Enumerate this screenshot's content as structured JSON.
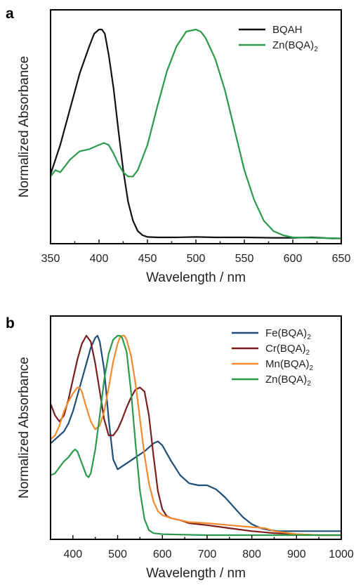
{
  "chart_data": [
    {
      "panel": "a",
      "type": "line",
      "xlabel": "Wavelength / nm",
      "ylabel": "Normalized Absorbance",
      "xlim": [
        350,
        650
      ],
      "ylim": [
        0,
        1
      ],
      "xticks": [
        350,
        400,
        450,
        500,
        550,
        600,
        650
      ],
      "legend_position": "top-right",
      "series": [
        {
          "name": "BQAH",
          "name_main": "BQAH",
          "name_sub": "",
          "color": "#111111",
          "x": [
            350,
            360,
            370,
            380,
            390,
            395,
            400,
            403,
            406,
            410,
            415,
            420,
            425,
            430,
            435,
            440,
            445,
            450,
            460,
            480,
            500,
            520,
            550,
            580,
            600,
            620,
            630,
            640,
            650
          ],
          "y": [
            0.31,
            0.45,
            0.62,
            0.79,
            0.92,
            0.98,
            1.0,
            1.0,
            0.98,
            0.88,
            0.72,
            0.52,
            0.33,
            0.18,
            0.09,
            0.04,
            0.02,
            0.012,
            0.01,
            0.01,
            0.012,
            0.01,
            0.01,
            0.008,
            0.008,
            0.01,
            0.008,
            0.005,
            0.005
          ]
        },
        {
          "name": "Zn(BQA)2",
          "name_main": "Zn(BQA)",
          "name_sub": "2",
          "color": "#2a9a4a",
          "x": [
            350,
            355,
            360,
            365,
            370,
            380,
            390,
            400,
            405,
            410,
            415,
            420,
            425,
            430,
            435,
            440,
            450,
            460,
            470,
            480,
            490,
            500,
            505,
            510,
            520,
            530,
            540,
            550,
            560,
            570,
            580,
            590,
            600,
            620,
            650
          ],
          "y": [
            0.3,
            0.33,
            0.32,
            0.35,
            0.38,
            0.42,
            0.43,
            0.45,
            0.46,
            0.45,
            0.41,
            0.36,
            0.32,
            0.3,
            0.3,
            0.33,
            0.45,
            0.63,
            0.8,
            0.92,
            0.99,
            1.0,
            0.99,
            0.96,
            0.86,
            0.71,
            0.52,
            0.33,
            0.19,
            0.09,
            0.04,
            0.02,
            0.01,
            0.008,
            0.005
          ]
        }
      ]
    },
    {
      "panel": "b",
      "type": "line",
      "xlabel": "Wavelength / nm",
      "ylabel": "Normalized Absorbance",
      "xlim": [
        350,
        1000
      ],
      "ylim": [
        0,
        1
      ],
      "xticks": [
        400,
        500,
        600,
        700,
        800,
        900,
        1000
      ],
      "legend_position": "top-right",
      "series": [
        {
          "name": "Fe(BQA)2",
          "name_main": "Fe(BQA)",
          "name_sub": "2",
          "color": "#1f4e79",
          "x": [
            350,
            360,
            370,
            380,
            390,
            400,
            410,
            420,
            430,
            440,
            450,
            455,
            460,
            470,
            480,
            490,
            500,
            520,
            540,
            560,
            580,
            590,
            600,
            620,
            640,
            660,
            680,
            700,
            720,
            740,
            760,
            780,
            800,
            820,
            840,
            860,
            880,
            900,
            950,
            1000
          ],
          "y": [
            0.46,
            0.48,
            0.5,
            0.52,
            0.56,
            0.62,
            0.7,
            0.78,
            0.86,
            0.94,
            0.99,
            1.0,
            0.97,
            0.83,
            0.58,
            0.38,
            0.33,
            0.36,
            0.39,
            0.42,
            0.46,
            0.47,
            0.45,
            0.37,
            0.3,
            0.26,
            0.25,
            0.25,
            0.23,
            0.19,
            0.14,
            0.09,
            0.055,
            0.035,
            0.025,
            0.02,
            0.02,
            0.02,
            0.02,
            0.02
          ]
        },
        {
          "name": "Cr(BQA)2",
          "name_main": "Cr(BQA)",
          "name_sub": "2",
          "color": "#7a1f1f",
          "x": [
            350,
            360,
            370,
            380,
            390,
            400,
            410,
            420,
            430,
            440,
            450,
            460,
            470,
            480,
            490,
            500,
            510,
            520,
            530,
            540,
            550,
            560,
            570,
            580,
            590,
            600,
            610,
            620,
            640,
            660,
            700,
            750,
            800,
            850,
            900,
            950,
            1000
          ],
          "y": [
            0.66,
            0.6,
            0.57,
            0.6,
            0.68,
            0.78,
            0.88,
            0.96,
            1.0,
            0.97,
            0.86,
            0.72,
            0.58,
            0.5,
            0.5,
            0.53,
            0.58,
            0.64,
            0.69,
            0.73,
            0.74,
            0.72,
            0.6,
            0.4,
            0.22,
            0.13,
            0.095,
            0.085,
            0.075,
            0.06,
            0.05,
            0.035,
            0.02,
            0.01,
            0.005,
            0.0,
            0.0
          ]
        },
        {
          "name": "Mn(BQA)2",
          "name_main": "Mn(BQA)",
          "name_sub": "2",
          "color": "#f28a2e",
          "x": [
            350,
            360,
            370,
            380,
            390,
            400,
            410,
            415,
            420,
            430,
            440,
            450,
            460,
            470,
            480,
            490,
            500,
            505,
            510,
            515,
            520,
            530,
            540,
            550,
            560,
            570,
            580,
            590,
            600,
            620,
            640,
            660,
            700,
            750,
            800,
            830,
            850,
            900,
            950,
            1000
          ],
          "y": [
            0.48,
            0.5,
            0.55,
            0.62,
            0.67,
            0.71,
            0.74,
            0.74,
            0.72,
            0.64,
            0.57,
            0.53,
            0.55,
            0.62,
            0.74,
            0.87,
            0.96,
            0.99,
            1.0,
            1.0,
            0.98,
            0.9,
            0.76,
            0.58,
            0.4,
            0.26,
            0.17,
            0.12,
            0.1,
            0.085,
            0.075,
            0.065,
            0.06,
            0.05,
            0.04,
            0.035,
            0.02,
            0.005,
            0.0,
            0.0
          ]
        },
        {
          "name": "Zn(BQA)2",
          "name_main": "Zn(BQA)",
          "name_sub": "2",
          "color": "#2a9a4a",
          "x": [
            350,
            360,
            370,
            380,
            390,
            400,
            405,
            410,
            420,
            430,
            435,
            440,
            450,
            460,
            470,
            480,
            490,
            500,
            505,
            510,
            520,
            530,
            540,
            550,
            560,
            570,
            580,
            600,
            650,
            700,
            800,
            1000
          ],
          "y": [
            0.3,
            0.31,
            0.34,
            0.37,
            0.39,
            0.42,
            0.43,
            0.42,
            0.36,
            0.3,
            0.29,
            0.31,
            0.43,
            0.6,
            0.78,
            0.91,
            0.98,
            1.0,
            1.0,
            0.99,
            0.92,
            0.72,
            0.46,
            0.22,
            0.08,
            0.025,
            0.01,
            0.005,
            0.002,
            0.0,
            0.0,
            0.0
          ]
        }
      ]
    }
  ]
}
